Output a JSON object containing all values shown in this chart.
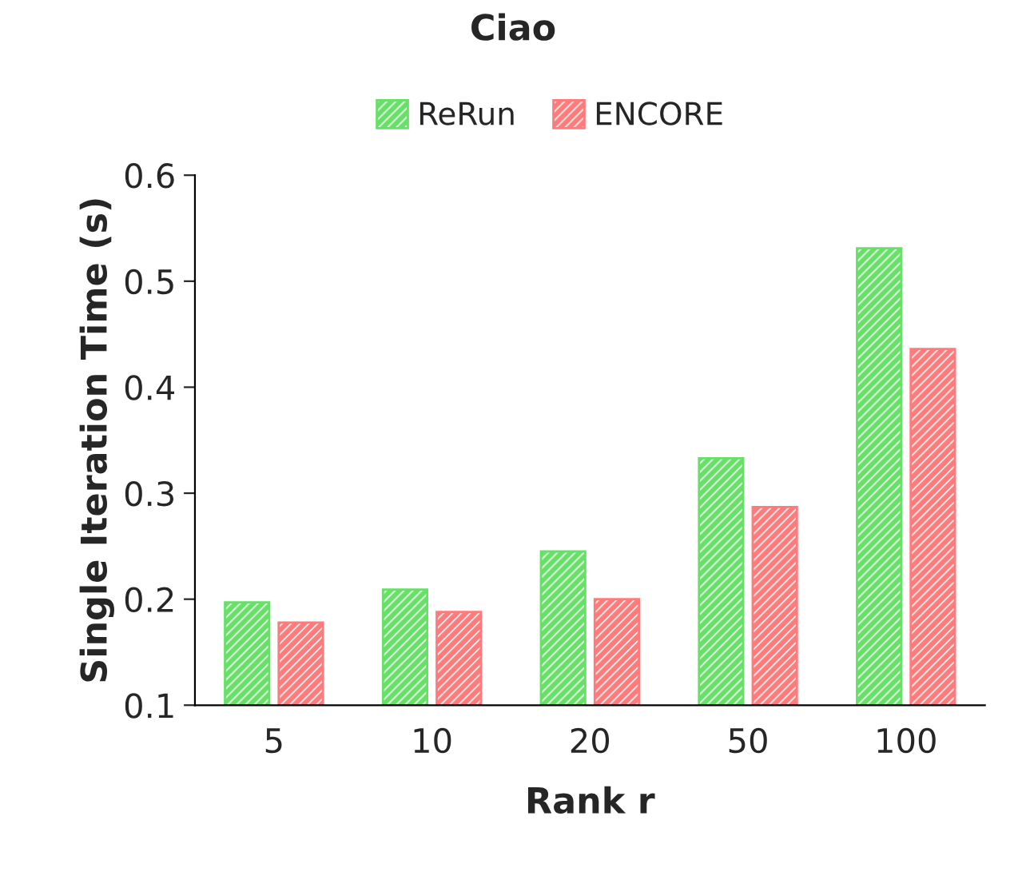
{
  "chart_data": {
    "type": "bar",
    "title": "Ciao",
    "xlabel": "Rank r",
    "ylabel": "Single Iteration Time (s)",
    "categories": [
      "5",
      "10",
      "20",
      "50",
      "100"
    ],
    "series": [
      {
        "name": "ReRun",
        "color": "#66e066",
        "values": [
          0.197,
          0.209,
          0.245,
          0.333,
          0.531
        ]
      },
      {
        "name": "ENCORE",
        "color": "#ff7a7a",
        "values": [
          0.178,
          0.188,
          0.2,
          0.287,
          0.436
        ]
      }
    ],
    "ylim": [
      0.1,
      0.6
    ],
    "yticks": [
      0.1,
      0.2,
      0.3,
      0.4,
      0.5,
      0.6
    ],
    "grid": false,
    "legend": "top"
  }
}
